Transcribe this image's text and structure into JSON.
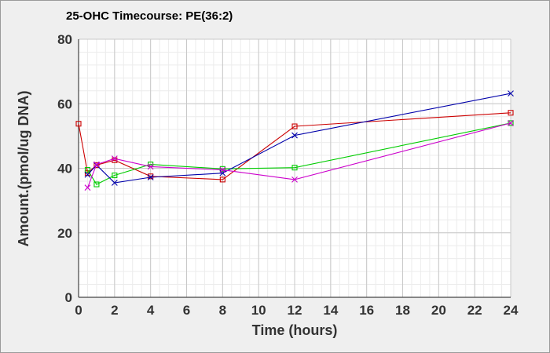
{
  "chart_data": {
    "type": "line",
    "title": "25-OHC Timecourse: PE(36:2)",
    "xlabel": "Time (hours)",
    "ylabel": "Amount.(pmol/ug DNA)",
    "xlim": [
      0,
      24
    ],
    "ylim": [
      0,
      80
    ],
    "x_ticks": [
      0,
      2,
      4,
      6,
      8,
      10,
      12,
      14,
      16,
      18,
      20,
      22,
      24
    ],
    "y_ticks": [
      0,
      20,
      40,
      60,
      80
    ],
    "grid": true,
    "legend": "none",
    "series": [
      {
        "color": "#cc0000",
        "marker": "square",
        "points": [
          [
            0,
            53.8
          ],
          [
            0.5,
            38.5
          ],
          [
            1,
            41
          ],
          [
            2,
            42.5
          ],
          [
            4,
            37.5
          ],
          [
            8,
            36.5
          ],
          [
            12,
            53
          ],
          [
            24,
            57.2
          ]
        ]
      },
      {
        "color": "#00cc00",
        "marker": "square",
        "points": [
          [
            0.5,
            39.5
          ],
          [
            1,
            35
          ],
          [
            2,
            37.8
          ],
          [
            4,
            41.2
          ],
          [
            8,
            39.8
          ],
          [
            12,
            40.2
          ],
          [
            24,
            54
          ]
        ]
      },
      {
        "color": "#0000aa",
        "marker": "x",
        "points": [
          [
            0.5,
            38
          ],
          [
            1,
            41
          ],
          [
            2,
            35.5
          ],
          [
            4,
            37.2
          ],
          [
            8,
            38.5
          ],
          [
            12,
            50.2
          ],
          [
            24,
            63.2
          ]
        ]
      },
      {
        "color": "#cc00cc",
        "marker": "x",
        "points": [
          [
            0.5,
            34
          ],
          [
            1,
            41.2
          ],
          [
            2,
            43
          ],
          [
            4,
            40.5
          ],
          [
            8,
            39.5
          ],
          [
            12,
            36.5
          ],
          [
            24,
            54
          ]
        ]
      }
    ]
  }
}
